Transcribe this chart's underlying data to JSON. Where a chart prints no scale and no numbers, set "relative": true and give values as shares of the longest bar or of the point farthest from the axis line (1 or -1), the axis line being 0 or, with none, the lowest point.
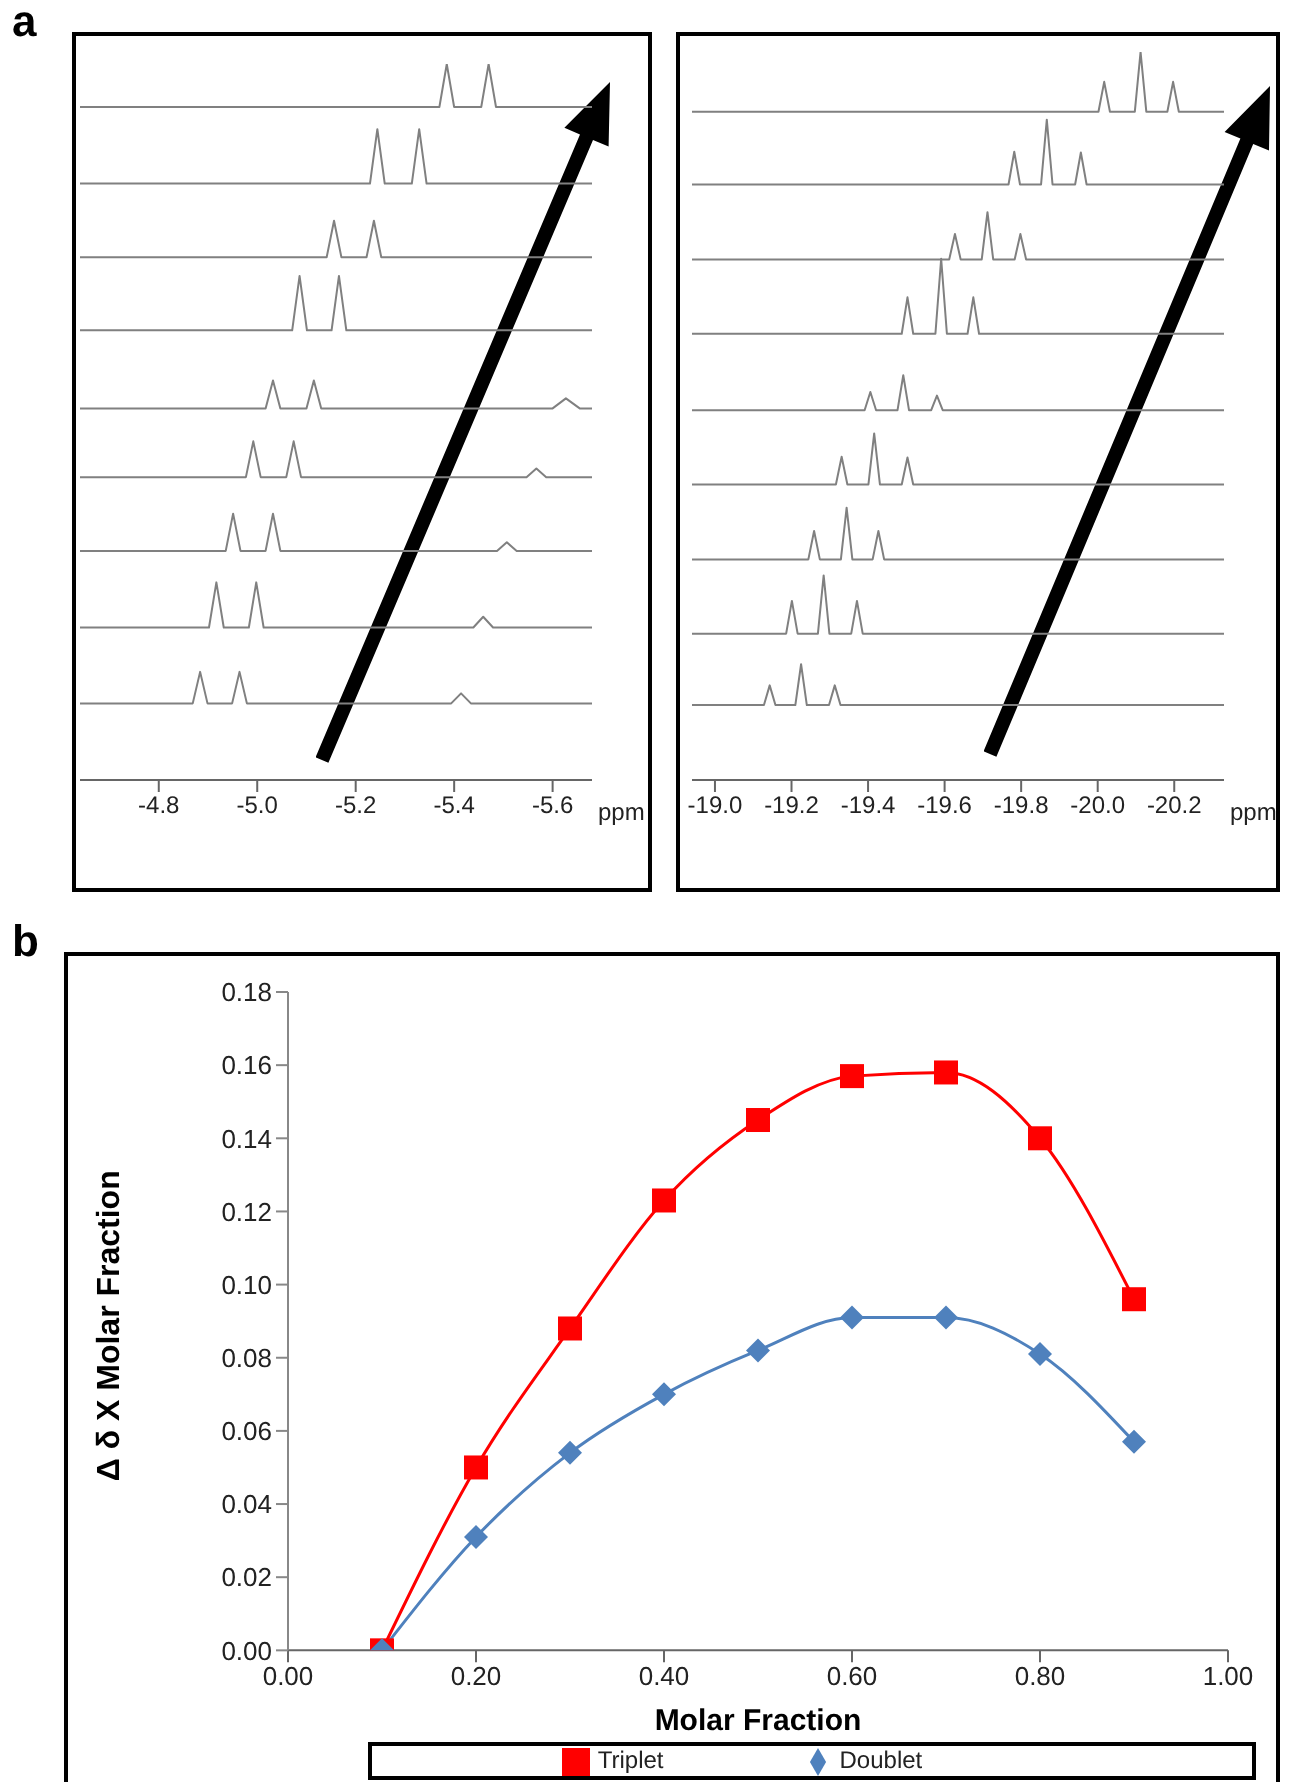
{
  "chart_data": [
    {
      "type": "line",
      "title": "a",
      "relative": true,
      "xlabel": "ppm",
      "marker": "none",
      "grid": false,
      "legend": false,
      "xlim": [
        -4.64,
        -5.68
      ],
      "xticks": [
        -4.8,
        {
          "value": -5,
          "label": "-5.0"
        },
        -5.2,
        -5.4,
        -5.6
      ],
      "series": [
        {
          "color": "#808080",
          "x": [
            -4.64,
            -5.37,
            -5.385,
            -5.4,
            -5.455,
            -5.47,
            -5.485,
            -5.68
          ],
          "values": [
            0.94,
            0.94,
            1.0,
            0.94,
            0.94,
            1.0,
            0.94,
            0.94
          ]
        },
        {
          "color": "#808080",
          "x": [
            -4.64,
            -5.229,
            -5.244,
            -5.259,
            -5.314,
            -5.329,
            -5.344,
            -5.68
          ],
          "values": [
            0.833,
            0.833,
            0.909,
            0.833,
            0.833,
            0.909,
            0.833,
            0.833
          ]
        },
        {
          "color": "#808080",
          "x": [
            -4.64,
            -5.141,
            -5.156,
            -5.171,
            -5.222,
            -5.237,
            -5.252,
            -5.68
          ],
          "values": [
            0.73,
            0.73,
            0.781,
            0.73,
            0.73,
            0.781,
            0.73,
            0.73
          ]
        },
        {
          "color": "#808080",
          "x": [
            -4.64,
            -5.071,
            -5.086,
            -5.101,
            -5.151,
            -5.166,
            -5.181,
            -5.68
          ],
          "values": [
            0.628,
            0.628,
            0.704,
            0.628,
            0.628,
            0.704,
            0.628,
            0.628
          ]
        },
        {
          "color": "#808080",
          "x": [
            -4.64,
            -5.017,
            -5.032,
            -5.047,
            -5.1,
            -5.115,
            -5.13,
            -5.6,
            -5.627,
            -5.655,
            -5.68
          ],
          "values": [
            0.519,
            0.519,
            0.558,
            0.519,
            0.519,
            0.558,
            0.519,
            0.519,
            0.533,
            0.519,
            0.519
          ]
        },
        {
          "color": "#808080",
          "x": [
            -4.64,
            -4.977,
            -4.992,
            -5.007,
            -5.059,
            -5.074,
            -5.089,
            -5.547,
            -5.567,
            -5.587,
            -5.68
          ],
          "values": [
            0.423,
            0.423,
            0.473,
            0.423,
            0.423,
            0.473,
            0.423,
            0.423,
            0.435,
            0.423,
            0.423
          ]
        },
        {
          "color": "#808080",
          "x": [
            -4.64,
            -4.936,
            -4.951,
            -4.966,
            -5.017,
            -5.032,
            -5.047,
            -5.487,
            -5.507,
            -5.527,
            -5.68
          ],
          "values": [
            0.32,
            0.32,
            0.372,
            0.32,
            0.32,
            0.372,
            0.32,
            0.32,
            0.332,
            0.32,
            0.32
          ]
        },
        {
          "color": "#808080",
          "x": [
            -4.64,
            -4.902,
            -4.917,
            -4.932,
            -4.983,
            -4.998,
            -5.013,
            -5.439,
            -5.459,
            -5.479,
            -5.68
          ],
          "values": [
            0.213,
            0.213,
            0.276,
            0.213,
            0.213,
            0.276,
            0.213,
            0.213,
            0.228,
            0.213,
            0.213
          ]
        },
        {
          "color": "#808080",
          "x": [
            -4.64,
            -4.869,
            -4.884,
            -4.899,
            -4.949,
            -4.964,
            -4.979,
            -5.394,
            -5.414,
            -5.434,
            -5.68
          ],
          "values": [
            0.107,
            0.107,
            0.151,
            0.107,
            0.107,
            0.151,
            0.107,
            0.107,
            0.121,
            0.107,
            0.107
          ]
        }
      ]
    },
    {
      "type": "line",
      "relative": true,
      "xlabel": "ppm",
      "marker": "none",
      "grid": false,
      "legend": false,
      "xlim": [
        -18.94,
        -20.33
      ],
      "xticks": [
        {
          "value": -19,
          "label": "-19.0"
        },
        -19.2,
        -19.4,
        -19.6,
        -19.8,
        {
          "value": -20,
          "label": "-20.0"
        },
        -20.2
      ],
      "series": [
        {
          "color": "#808080",
          "x": [
            -18.94,
            -20.002,
            -20.017,
            -20.032,
            -20.097,
            -20.112,
            -20.127,
            -20.182,
            -20.197,
            -20.212,
            -20.33
          ],
          "values": [
            0.918,
            0.918,
            0.959,
            0.918,
            0.918,
            1.0,
            0.918,
            0.918,
            0.959,
            0.918,
            0.918
          ]
        },
        {
          "color": "#808080",
          "x": [
            -18.94,
            -19.767,
            -19.782,
            -19.797,
            -19.852,
            -19.867,
            -19.882,
            -19.941,
            -19.956,
            -19.971,
            -20.33
          ],
          "values": [
            0.818,
            0.818,
            0.863,
            0.818,
            0.818,
            0.907,
            0.818,
            0.818,
            0.862,
            0.818,
            0.818
          ]
        },
        {
          "color": "#808080",
          "x": [
            -18.94,
            -19.612,
            -19.627,
            -19.642,
            -19.697,
            -19.712,
            -19.727,
            -19.783,
            -19.798,
            -19.813,
            -20.33
          ],
          "values": [
            0.715,
            0.715,
            0.75,
            0.715,
            0.715,
            0.78,
            0.715,
            0.715,
            0.75,
            0.715,
            0.715
          ]
        },
        {
          "color": "#808080",
          "x": [
            -18.94,
            -19.488,
            -19.503,
            -19.518,
            -19.576,
            -19.591,
            -19.606,
            -19.66,
            -19.675,
            -19.69,
            -20.33
          ],
          "values": [
            0.613,
            0.613,
            0.663,
            0.613,
            0.613,
            0.716,
            0.613,
            0.613,
            0.663,
            0.613,
            0.613
          ]
        },
        {
          "color": "#808080",
          "x": [
            -18.94,
            -19.391,
            -19.406,
            -19.421,
            -19.477,
            -19.492,
            -19.507,
            -19.565,
            -19.58,
            -19.595,
            -20.33
          ],
          "values": [
            0.508,
            0.508,
            0.533,
            0.508,
            0.508,
            0.556,
            0.508,
            0.508,
            0.528,
            0.508,
            0.508
          ]
        },
        {
          "color": "#808080",
          "x": [
            -18.94,
            -19.316,
            -19.331,
            -19.346,
            -19.401,
            -19.416,
            -19.431,
            -19.488,
            -19.503,
            -19.518,
            -20.33
          ],
          "values": [
            0.406,
            0.406,
            0.444,
            0.406,
            0.406,
            0.476,
            0.406,
            0.406,
            0.443,
            0.406,
            0.406
          ]
        },
        {
          "color": "#808080",
          "x": [
            -18.94,
            -19.244,
            -19.259,
            -19.274,
            -19.329,
            -19.344,
            -19.359,
            -19.412,
            -19.427,
            -19.442,
            -20.33
          ],
          "values": [
            0.303,
            0.303,
            0.342,
            0.303,
            0.303,
            0.374,
            0.303,
            0.303,
            0.342,
            0.303,
            0.303
          ]
        },
        {
          "color": "#808080",
          "x": [
            -18.94,
            -19.186,
            -19.201,
            -19.216,
            -19.269,
            -19.284,
            -19.299,
            -19.356,
            -19.371,
            -19.386,
            -20.33
          ],
          "values": [
            0.201,
            0.201,
            0.246,
            0.201,
            0.201,
            0.281,
            0.201,
            0.201,
            0.246,
            0.201,
            0.201
          ]
        },
        {
          "color": "#808080",
          "x": [
            -18.94,
            -19.128,
            -19.143,
            -19.158,
            -19.21,
            -19.225,
            -19.24,
            -19.298,
            -19.313,
            -19.328,
            -20.33
          ],
          "values": [
            0.103,
            0.103,
            0.13,
            0.103,
            0.103,
            0.159,
            0.103,
            0.103,
            0.13,
            0.103,
            0.103
          ]
        }
      ]
    },
    {
      "type": "line",
      "title": "b",
      "xlabel": "Molar Fraction",
      "ylabel": "Δ δ X Molar Fraction",
      "grid": false,
      "legend": "bottom",
      "xlim": [
        0,
        1
      ],
      "xticks": [
        {
          "value": 0,
          "label": "0.00"
        },
        {
          "value": 0.2,
          "label": "0.20"
        },
        {
          "value": 0.4,
          "label": "0.40"
        },
        {
          "value": 0.6,
          "label": "0.60"
        },
        {
          "value": 0.8,
          "label": "0.80"
        },
        {
          "value": 1,
          "label": "1.00"
        }
      ],
      "ylim": [
        0,
        0.18
      ],
      "yticks": [
        {
          "value": 0,
          "label": "0.00"
        },
        0.02,
        0.04,
        0.06,
        0.08,
        {
          "value": 0.1,
          "label": "0.10"
        },
        0.12,
        0.14,
        0.16,
        0.18
      ],
      "x": [
        0.1,
        0.2,
        0.3,
        0.4,
        0.5,
        0.6,
        0.7,
        0.8,
        0.9
      ],
      "series": [
        {
          "name": "Triplet",
          "color": "#ff0000",
          "marker": "square",
          "values": [
            0.0,
            0.05,
            0.088,
            0.123,
            0.145,
            0.157,
            0.158,
            0.14,
            0.096
          ]
        },
        {
          "name": "Doublet",
          "color": "#4f81bd",
          "marker": "diamond",
          "values": [
            0.0,
            0.031,
            0.054,
            0.07,
            0.082,
            0.091,
            0.091,
            0.081,
            0.057
          ]
        }
      ]
    }
  ]
}
